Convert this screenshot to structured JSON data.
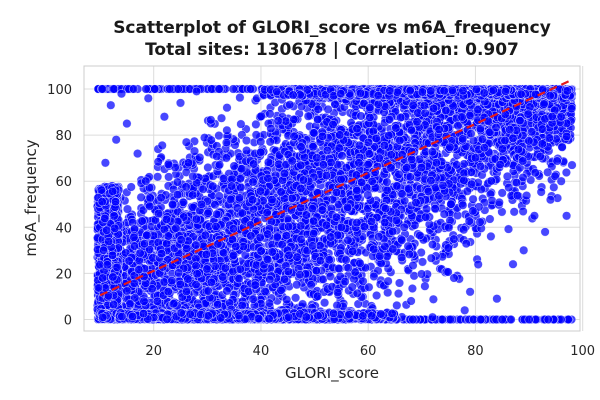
{
  "chart_data": {
    "type": "scatter",
    "title": "Scatterplot of GLORI_score vs m6A_frequency",
    "subtitle": "Total sites: 130678 | Correlation: 0.907",
    "xlabel": "GLORI_score",
    "ylabel": "m6A_frequency",
    "xlim": [
      7,
      99.5
    ],
    "ylim": [
      -5,
      110
    ],
    "xticks": [
      20,
      40,
      60,
      80,
      100
    ],
    "yticks": [
      0,
      20,
      40,
      60,
      80,
      100
    ],
    "grid": true,
    "point_color": "#0000ff",
    "point_edge_color": "#ffffff",
    "trend_color": "#e31a1c",
    "trend_line": {
      "x": [
        10,
        98
      ],
      "y": [
        10.5,
        104
      ]
    },
    "extreme_points": [
      {
        "x": 81,
        "y": 0
      },
      {
        "x": 85,
        "y": 0
      },
      {
        "x": 90,
        "y": 0
      },
      {
        "x": 84,
        "y": 9
      },
      {
        "x": 78,
        "y": 4
      },
      {
        "x": 87,
        "y": 24
      },
      {
        "x": 91,
        "y": 45
      },
      {
        "x": 97,
        "y": 45
      },
      {
        "x": 93,
        "y": 38
      },
      {
        "x": 89,
        "y": 30
      },
      {
        "x": 79,
        "y": 12
      },
      {
        "x": 76,
        "y": 18
      },
      {
        "x": 12,
        "y": 93
      },
      {
        "x": 14,
        "y": 98
      },
      {
        "x": 15,
        "y": 85
      },
      {
        "x": 13,
        "y": 78
      },
      {
        "x": 17,
        "y": 72
      },
      {
        "x": 19,
        "y": 96
      },
      {
        "x": 22,
        "y": 88
      },
      {
        "x": 25,
        "y": 94
      },
      {
        "x": 11,
        "y": 68
      },
      {
        "x": 28,
        "y": 99
      },
      {
        "x": 96,
        "y": 60
      },
      {
        "x": 98,
        "y": 67
      },
      {
        "x": 94,
        "y": 52
      },
      {
        "x": 72,
        "y": 1
      },
      {
        "x": 68,
        "y": 8
      }
    ]
  }
}
